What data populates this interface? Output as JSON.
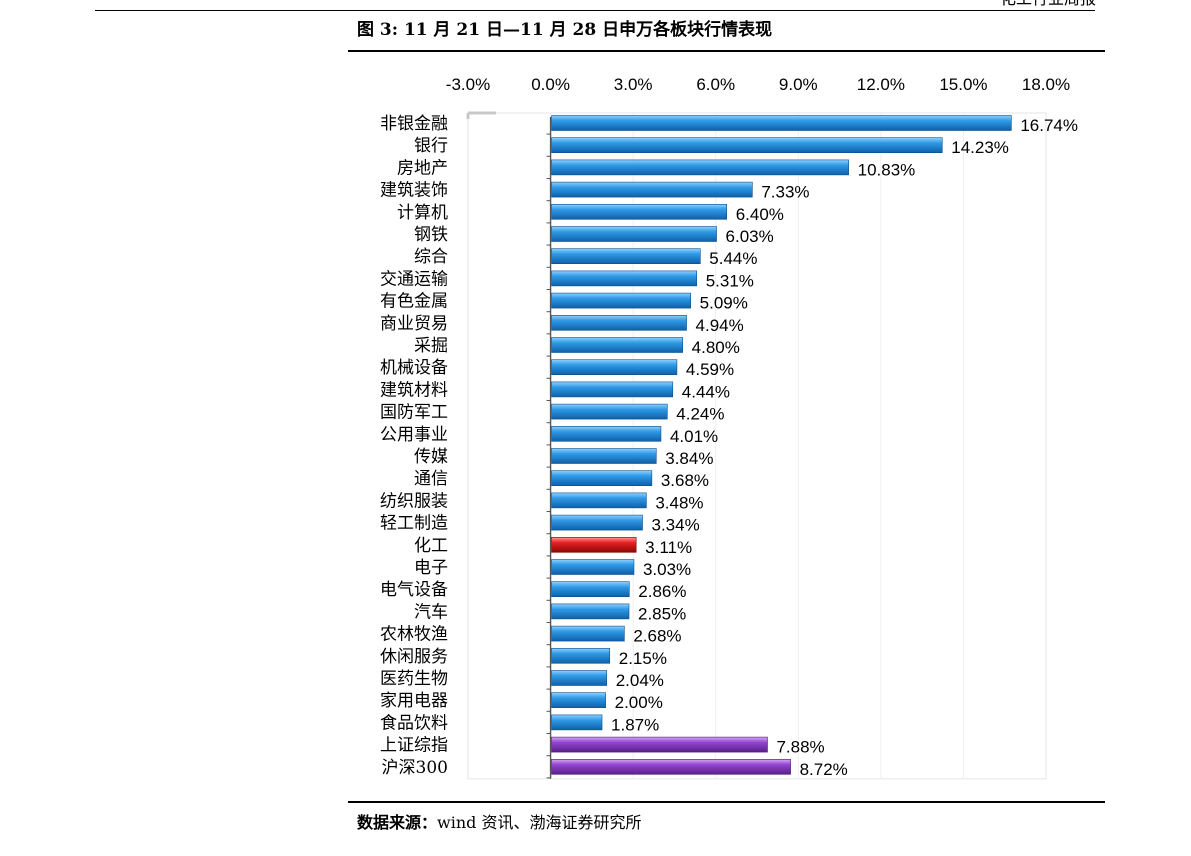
{
  "header": {
    "fragment": "化工行业周报"
  },
  "figure": {
    "title": "图 3:  11 月 21 日—11 月 28 日申万各板块行情表现",
    "source_label": "数据来源：",
    "source_text": "wind 资讯、渤海证券研究所"
  },
  "colors": {
    "bar_default": "#1f8fdc",
    "bar_highlight": "#d81818",
    "bar_index": "#8a3fc4"
  },
  "chart_data": {
    "type": "bar",
    "orientation": "horizontal",
    "x_axis_position": "top",
    "xlim": [
      -3,
      18
    ],
    "x_ticks": [
      -3,
      0,
      3,
      6,
      9,
      12,
      15,
      18
    ],
    "x_tick_labels": [
      "-3.0%",
      "0.0%",
      "3.0%",
      "6.0%",
      "9.0%",
      "12.0%",
      "15.0%",
      "18.0%"
    ],
    "unit": "%",
    "grid": true,
    "categories": [
      "非银金融",
      "银行",
      "房地产",
      "建筑装饰",
      "计算机",
      "钢铁",
      "综合",
      "交通运输",
      "有色金属",
      "商业贸易",
      "采掘",
      "机械设备",
      "建筑材料",
      "国防军工",
      "公用事业",
      "传媒",
      "通信",
      "纺织服装",
      "轻工制造",
      "化工",
      "电子",
      "电气设备",
      "汽车",
      "农林牧渔",
      "休闲服务",
      "医药生物",
      "家用电器",
      "食品饮料",
      "上证综指",
      "沪深300"
    ],
    "values": [
      16.74,
      14.23,
      10.83,
      7.33,
      6.4,
      6.03,
      5.44,
      5.31,
      5.09,
      4.94,
      4.8,
      4.59,
      4.44,
      4.24,
      4.01,
      3.84,
      3.68,
      3.48,
      3.34,
      3.11,
      3.03,
      2.86,
      2.85,
      2.68,
      2.15,
      2.04,
      2.0,
      1.87,
      7.88,
      8.72
    ],
    "value_labels": [
      "16.74%",
      "14.23%",
      "10.83%",
      "7.33%",
      "6.40%",
      "6.03%",
      "5.44%",
      "5.31%",
      "5.09%",
      "4.94%",
      "4.80%",
      "4.59%",
      "4.44%",
      "4.24%",
      "4.01%",
      "3.84%",
      "3.68%",
      "3.48%",
      "3.34%",
      "3.11%",
      "3.03%",
      "2.86%",
      "2.85%",
      "2.68%",
      "2.15%",
      "2.04%",
      "2.00%",
      "1.87%",
      "7.88%",
      "8.72%"
    ],
    "bar_kinds": [
      "sector",
      "sector",
      "sector",
      "sector",
      "sector",
      "sector",
      "sector",
      "sector",
      "sector",
      "sector",
      "sector",
      "sector",
      "sector",
      "sector",
      "sector",
      "sector",
      "sector",
      "sector",
      "sector",
      "highlight",
      "sector",
      "sector",
      "sector",
      "sector",
      "sector",
      "sector",
      "sector",
      "sector",
      "index",
      "index"
    ]
  }
}
